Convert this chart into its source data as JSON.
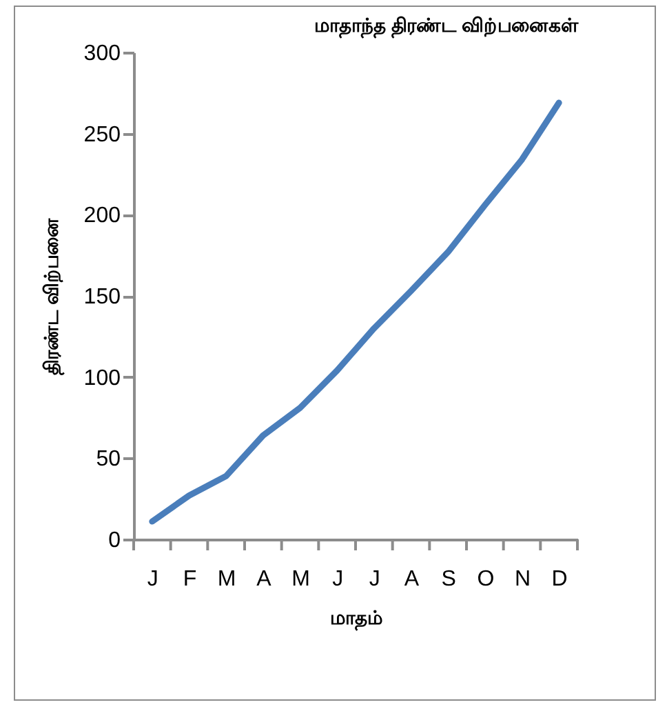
{
  "chart_data": {
    "type": "line",
    "title": "மாதாந்த திரண்ட விற்பனைகள்",
    "xlabel": "மாதம்",
    "ylabel": "திரண்ட விற்பனை",
    "categories": [
      "J",
      "F",
      "M",
      "A",
      "M",
      "J",
      "J",
      "A",
      "S",
      "O",
      "N",
      "D"
    ],
    "series": [
      {
        "color": "#4a7ebb",
        "values": [
          11,
          27,
          39,
          64,
          81,
          104,
          130,
          153,
          177,
          206,
          234,
          269
        ]
      }
    ],
    "ylim": [
      0,
      300
    ],
    "yticks": [
      0,
      50,
      100,
      150,
      200,
      250,
      300
    ],
    "grid": false,
    "legend": false,
    "marker": "none",
    "line_style": "solid"
  }
}
